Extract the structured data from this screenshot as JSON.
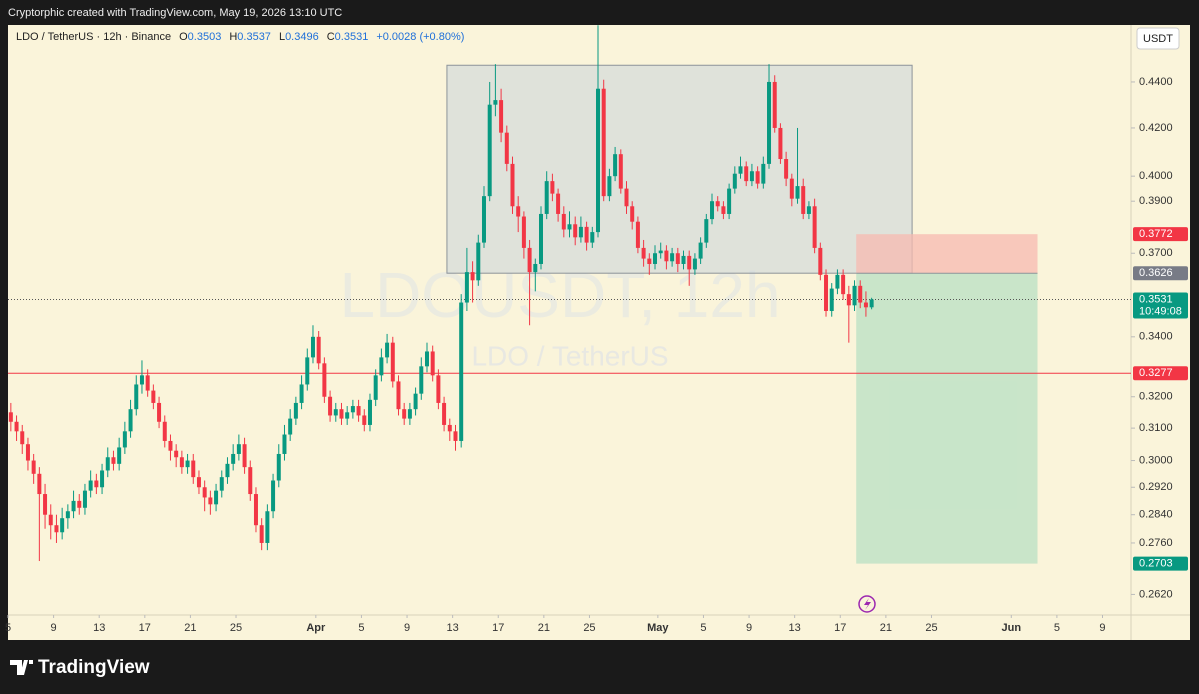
{
  "header": {
    "credit": "Cryptorphic created with TradingView.com, May 19, 2026 13:10 UTC",
    "symbol": "LDO / TetherUS · 12h · Binance",
    "ohlc": [
      {
        "label": "O",
        "value": 0.3503
      },
      {
        "label": "H",
        "value": 0.3537
      },
      {
        "label": "L",
        "value": 0.3496
      },
      {
        "label": "C",
        "value": 0.3531
      }
    ],
    "change": "+0.0028 (+0.80%)"
  },
  "chart_data": {
    "type": "candlestick",
    "watermark": "LDOUSDT, 12h",
    "watermark_sub": "LDO / TetherUS",
    "axis_unit": "USDT",
    "colors": {
      "up": "#089981",
      "down": "#f23645"
    },
    "log_scale": true,
    "ylim": [
      0.2566,
      0.4661
    ],
    "yticks": [
      {
        "value": 0.44,
        "label": "0.4400"
      },
      {
        "value": 0.42,
        "label": "0.4200"
      },
      {
        "value": 0.4,
        "label": "0.4000"
      },
      {
        "value": 0.39,
        "label": "0.3900"
      },
      {
        "value": 0.37,
        "label": "0.3700"
      },
      {
        "value": 0.34,
        "label": "0.3400"
      },
      {
        "value": 0.32,
        "label": "0.3200"
      },
      {
        "value": 0.31,
        "label": "0.3100"
      },
      {
        "value": 0.3,
        "label": "0.3000"
      },
      {
        "value": 0.292,
        "label": "0.2920"
      },
      {
        "value": 0.284,
        "label": "0.2840"
      },
      {
        "value": 0.276,
        "label": "0.2760"
      },
      {
        "value": 0.262,
        "label": "0.2620"
      }
    ],
    "xlim": [
      0,
      98.5
    ],
    "xticks": [
      {
        "value": 0,
        "label": "5"
      },
      {
        "value": 4,
        "label": "9"
      },
      {
        "value": 8,
        "label": "13"
      },
      {
        "value": 12,
        "label": "17"
      },
      {
        "value": 16,
        "label": "21"
      },
      {
        "value": 20,
        "label": "25"
      },
      {
        "value": 27,
        "label": "Apr"
      },
      {
        "value": 31,
        "label": "5"
      },
      {
        "value": 35,
        "label": "9"
      },
      {
        "value": 39,
        "label": "13"
      },
      {
        "value": 43,
        "label": "17"
      },
      {
        "value": 47,
        "label": "21"
      },
      {
        "value": 51,
        "label": "25"
      },
      {
        "value": 57,
        "label": "May"
      },
      {
        "value": 61,
        "label": "5"
      },
      {
        "value": 65,
        "label": "9"
      },
      {
        "value": 69,
        "label": "13"
      },
      {
        "value": 73,
        "label": "17"
      },
      {
        "value": 77,
        "label": "21"
      },
      {
        "value": 81,
        "label": "25"
      },
      {
        "value": 88,
        "label": "Jun"
      },
      {
        "value": 92,
        "label": "5"
      },
      {
        "value": 96,
        "label": "9"
      }
    ],
    "open": [
      0.315,
      0.312,
      0.309,
      0.305,
      0.3,
      0.296,
      0.29,
      0.284,
      0.281,
      0.279,
      0.283,
      0.285,
      0.288,
      0.286,
      0.291,
      0.294,
      0.292,
      0.297,
      0.301,
      0.299,
      0.304,
      0.309,
      0.316,
      0.324,
      0.327,
      0.322,
      0.318,
      0.312,
      0.306,
      0.303,
      0.301,
      0.298,
      0.3,
      0.295,
      0.292,
      0.289,
      0.287,
      0.291,
      0.295,
      0.299,
      0.302,
      0.305,
      0.298,
      0.29,
      0.281,
      0.276,
      0.285,
      0.294,
      0.302,
      0.308,
      0.313,
      0.318,
      0.324,
      0.333,
      0.34,
      0.331,
      0.32,
      0.314,
      0.316,
      0.313,
      0.315,
      0.317,
      0.314,
      0.311,
      0.319,
      0.327,
      0.333,
      0.338,
      0.325,
      0.316,
      0.313,
      0.316,
      0.321,
      0.33,
      0.335,
      0.327,
      0.318,
      0.311,
      0.309,
      0.306,
      0.352,
      0.363,
      0.36,
      0.374,
      0.392,
      0.43,
      0.432,
      0.418,
      0.405,
      0.388,
      0.384,
      0.372,
      0.363,
      0.366,
      0.385,
      0.398,
      0.393,
      0.385,
      0.379,
      0.381,
      0.376,
      0.38,
      0.374,
      0.378,
      0.437,
      0.392,
      0.4,
      0.409,
      0.395,
      0.388,
      0.382,
      0.372,
      0.368,
      0.366,
      0.37,
      0.371,
      0.367,
      0.37,
      0.366,
      0.369,
      0.364,
      0.368,
      0.374,
      0.383,
      0.39,
      0.388,
      0.385,
      0.395,
      0.401,
      0.404,
      0.398,
      0.402,
      0.397,
      0.405,
      0.44,
      0.42,
      0.407,
      0.399,
      0.391,
      0.396,
      0.385,
      0.388,
      0.372,
      0.362,
      0.349,
      0.357,
      0.362,
      0.355,
      0.351,
      0.358,
      0.352,
      0.3503
    ],
    "high": [
      0.318,
      0.314,
      0.311,
      0.307,
      0.302,
      0.298,
      0.293,
      0.287,
      0.284,
      0.286,
      0.287,
      0.291,
      0.29,
      0.293,
      0.297,
      0.296,
      0.299,
      0.304,
      0.303,
      0.307,
      0.312,
      0.319,
      0.327,
      0.332,
      0.329,
      0.324,
      0.32,
      0.314,
      0.308,
      0.305,
      0.303,
      0.302,
      0.302,
      0.297,
      0.294,
      0.291,
      0.293,
      0.297,
      0.301,
      0.305,
      0.308,
      0.307,
      0.3,
      0.292,
      0.283,
      0.287,
      0.296,
      0.305,
      0.311,
      0.316,
      0.32,
      0.327,
      0.336,
      0.344,
      0.342,
      0.333,
      0.322,
      0.318,
      0.318,
      0.317,
      0.319,
      0.319,
      0.316,
      0.321,
      0.329,
      0.336,
      0.341,
      0.34,
      0.327,
      0.318,
      0.318,
      0.323,
      0.333,
      0.338,
      0.337,
      0.329,
      0.32,
      0.313,
      0.311,
      0.355,
      0.372,
      0.367,
      0.377,
      0.396,
      0.44,
      0.448,
      0.437,
      0.421,
      0.408,
      0.392,
      0.386,
      0.375,
      0.368,
      0.388,
      0.402,
      0.401,
      0.395,
      0.388,
      0.386,
      0.384,
      0.384,
      0.382,
      0.38,
      0.466,
      0.441,
      0.403,
      0.412,
      0.411,
      0.398,
      0.39,
      0.384,
      0.375,
      0.37,
      0.373,
      0.374,
      0.373,
      0.372,
      0.372,
      0.371,
      0.371,
      0.37,
      0.376,
      0.385,
      0.393,
      0.392,
      0.39,
      0.397,
      0.404,
      0.408,
      0.406,
      0.405,
      0.404,
      0.408,
      0.448,
      0.443,
      0.422,
      0.41,
      0.401,
      0.42,
      0.399,
      0.39,
      0.391,
      0.374,
      0.364,
      0.359,
      0.364,
      0.364,
      0.358,
      0.36,
      0.36,
      0.356,
      0.3537
    ],
    "low": [
      0.309,
      0.306,
      0.302,
      0.297,
      0.293,
      0.271,
      0.28,
      0.277,
      0.276,
      0.277,
      0.28,
      0.283,
      0.284,
      0.284,
      0.289,
      0.29,
      0.29,
      0.295,
      0.297,
      0.297,
      0.302,
      0.307,
      0.314,
      0.321,
      0.32,
      0.316,
      0.31,
      0.304,
      0.3,
      0.298,
      0.296,
      0.296,
      0.293,
      0.29,
      0.285,
      0.284,
      0.285,
      0.289,
      0.293,
      0.297,
      0.3,
      0.296,
      0.288,
      0.279,
      0.274,
      0.274,
      0.283,
      0.292,
      0.3,
      0.306,
      0.311,
      0.316,
      0.322,
      0.331,
      0.329,
      0.318,
      0.312,
      0.312,
      0.311,
      0.311,
      0.313,
      0.312,
      0.309,
      0.309,
      0.317,
      0.325,
      0.331,
      0.323,
      0.314,
      0.311,
      0.311,
      0.314,
      0.319,
      0.328,
      0.325,
      0.316,
      0.309,
      0.306,
      0.303,
      0.304,
      0.349,
      0.352,
      0.358,
      0.372,
      0.39,
      0.425,
      0.414,
      0.402,
      0.385,
      0.378,
      0.368,
      0.344,
      0.356,
      0.364,
      0.383,
      0.39,
      0.382,
      0.376,
      0.376,
      0.373,
      0.374,
      0.371,
      0.372,
      0.376,
      0.39,
      0.39,
      0.398,
      0.393,
      0.385,
      0.379,
      0.37,
      0.365,
      0.362,
      0.364,
      0.368,
      0.364,
      0.365,
      0.363,
      0.364,
      0.358,
      0.362,
      0.366,
      0.372,
      0.381,
      0.386,
      0.383,
      0.383,
      0.393,
      0.399,
      0.396,
      0.396,
      0.395,
      0.395,
      0.403,
      0.418,
      0.405,
      0.396,
      0.388,
      0.389,
      0.383,
      0.383,
      0.37,
      0.36,
      0.347,
      0.347,
      0.355,
      0.353,
      0.338,
      0.349,
      0.35,
      0.347,
      0.3496
    ],
    "close": [
      0.312,
      0.309,
      0.305,
      0.3,
      0.296,
      0.29,
      0.284,
      0.281,
      0.279,
      0.283,
      0.285,
      0.288,
      0.286,
      0.291,
      0.294,
      0.292,
      0.297,
      0.301,
      0.299,
      0.304,
      0.309,
      0.316,
      0.324,
      0.327,
      0.322,
      0.318,
      0.312,
      0.306,
      0.303,
      0.301,
      0.298,
      0.3,
      0.295,
      0.292,
      0.289,
      0.287,
      0.291,
      0.295,
      0.299,
      0.302,
      0.305,
      0.298,
      0.29,
      0.281,
      0.276,
      0.285,
      0.294,
      0.302,
      0.308,
      0.313,
      0.318,
      0.324,
      0.333,
      0.34,
      0.331,
      0.32,
      0.314,
      0.316,
      0.313,
      0.315,
      0.317,
      0.314,
      0.311,
      0.319,
      0.327,
      0.333,
      0.338,
      0.325,
      0.316,
      0.313,
      0.316,
      0.321,
      0.33,
      0.335,
      0.327,
      0.318,
      0.311,
      0.309,
      0.306,
      0.352,
      0.363,
      0.36,
      0.374,
      0.392,
      0.43,
      0.432,
      0.418,
      0.405,
      0.388,
      0.384,
      0.372,
      0.363,
      0.366,
      0.385,
      0.398,
      0.393,
      0.385,
      0.379,
      0.381,
      0.376,
      0.38,
      0.374,
      0.378,
      0.437,
      0.392,
      0.4,
      0.409,
      0.395,
      0.388,
      0.382,
      0.372,
      0.368,
      0.366,
      0.37,
      0.371,
      0.367,
      0.37,
      0.366,
      0.369,
      0.364,
      0.368,
      0.374,
      0.383,
      0.39,
      0.388,
      0.385,
      0.395,
      0.401,
      0.404,
      0.398,
      0.402,
      0.397,
      0.405,
      0.44,
      0.42,
      0.407,
      0.399,
      0.391,
      0.396,
      0.385,
      0.388,
      0.372,
      0.362,
      0.349,
      0.357,
      0.362,
      0.355,
      0.351,
      0.358,
      0.352,
      0.3503,
      0.3531
    ],
    "range_box": {
      "top": 0.4475,
      "bottom": 0.3626,
      "x": [
        38.5,
        79.3
      ]
    },
    "position": {
      "stop": 0.3772,
      "entry": 0.3626,
      "target": 0.2703,
      "x": [
        74.4,
        90.3
      ]
    },
    "horizontal_line": 0.3277,
    "last_price": 0.3531,
    "countdown": "10:49:08"
  },
  "footer": {
    "brand": "TradingView"
  }
}
